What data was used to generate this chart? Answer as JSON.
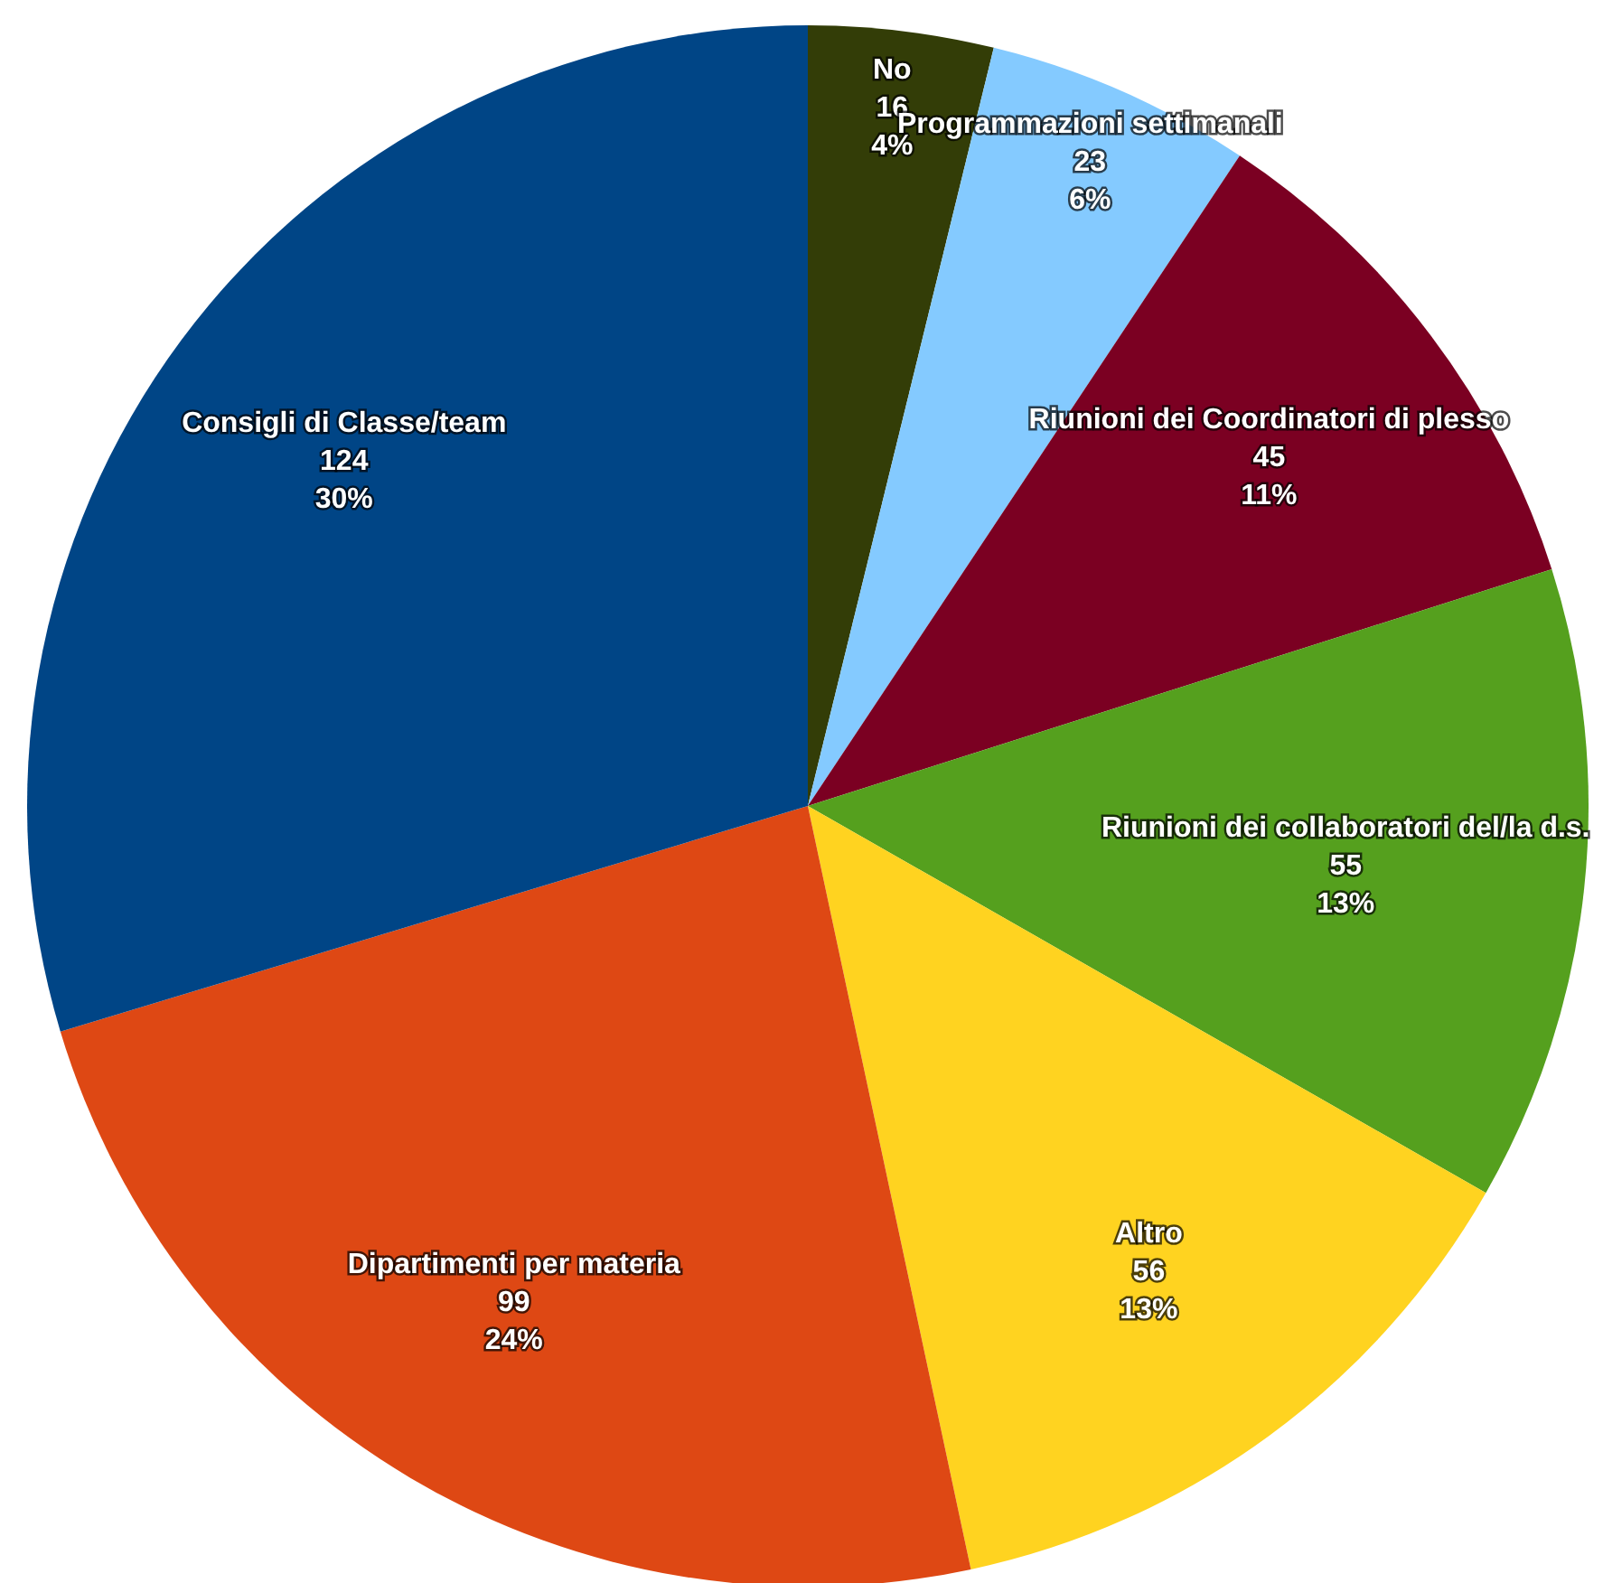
{
  "chart_data": {
    "type": "pie",
    "categories": [
      "No",
      "Programmazioni settimanali",
      "Riunioni dei Coordinatori di plesso",
      "Riunioni dei collaboratori del/la d.s.",
      "Altro",
      "Dipartimenti per materia",
      "Consigli di Classe/team"
    ],
    "values": [
      16,
      23,
      45,
      55,
      56,
      99,
      124
    ],
    "colors": [
      "#333d07",
      "#84caff",
      "#7b0022",
      "#55a01e",
      "#ffd320",
      "#de4814",
      "#004586"
    ],
    "value_labels": [
      "16\n4%",
      "23\n6%",
      "45\n11%",
      "55\n13%",
      "56\n13%",
      "99\n24%",
      "124\n30%"
    ],
    "legend": false
  }
}
